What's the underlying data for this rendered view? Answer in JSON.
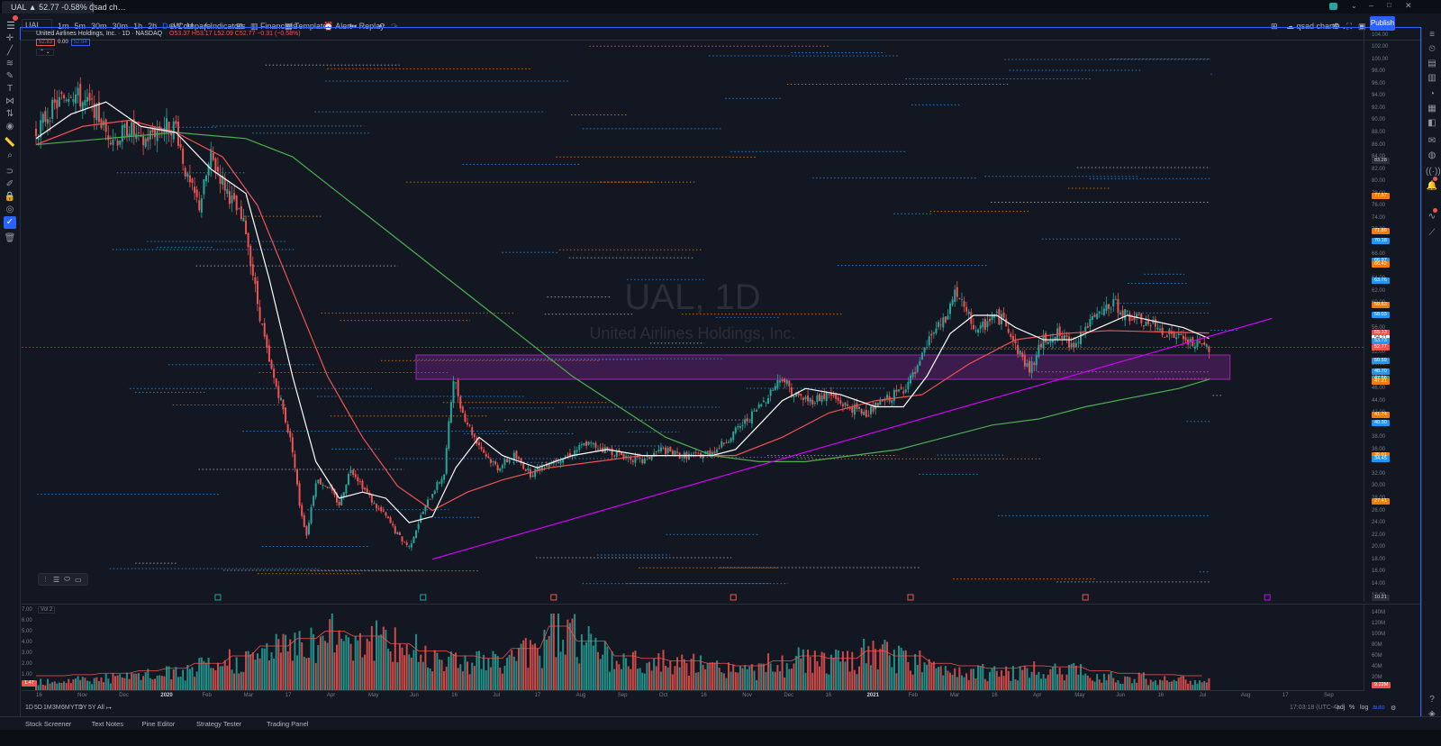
{
  "browser": {
    "tab_title": "UAL ▲ 52.77 -0.58% qsad ch…",
    "new_tab": "+"
  },
  "toolbar": {
    "symbol": "UAL",
    "intervals": [
      "1m",
      "5m",
      "30m",
      "30m",
      "1h",
      "2h",
      "D",
      "W",
      "M"
    ],
    "compare": "Compare",
    "indicators": "Indicators",
    "financials": "Financials",
    "templates": "Templates",
    "alert": "Alert",
    "replay": "Replay",
    "layout_name": "qsad charts",
    "publish": "Publish"
  },
  "legend": {
    "title": "United Airlines Holdings, Inc. · 1D · NASDAQ",
    "ohlc": "O53.37 H53.17 L52.09 C52.77 −0.31 (−0.58%)",
    "bid": "52.83",
    "spread": "0.00",
    "ask": "52.84",
    "volume_label": "Vol 2"
  },
  "watermark": {
    "symbol": "UAL, 1D",
    "name": "United Airlines Holdings, Inc."
  },
  "price_axis": {
    "ticks": [
      "104.00",
      "102.00",
      "100.00",
      "98.00",
      "96.00",
      "94.00",
      "92.00",
      "90.00",
      "88.00",
      "86.00",
      "84.00",
      "82.00",
      "80.00",
      "78.00",
      "76.00",
      "74.00",
      "72.00",
      "70.00",
      "68.00",
      "66.00",
      "64.00",
      "62.00",
      "60.00",
      "58.00",
      "56.00",
      "54.00",
      "52.00",
      "50.00",
      "48.00",
      "46.00",
      "44.00",
      "42.00",
      "40.00",
      "38.00",
      "36.00",
      "34.00",
      "32.00",
      "30.00",
      "28.00",
      "26.00",
      "24.00",
      "22.00",
      "20.00",
      "18.00",
      "16.00",
      "14.00",
      "12.00"
    ],
    "labels": [
      {
        "text": "83.28",
        "color": "#d1d4dc",
        "bg": "#2a2e39"
      },
      {
        "text": "77.57",
        "color": "#fff",
        "bg": "#f57c00"
      },
      {
        "text": "71.89",
        "color": "#fff",
        "bg": "#f57c00"
      },
      {
        "text": "70.18",
        "color": "#fff",
        "bg": "#2196f3"
      },
      {
        "text": "66.97",
        "color": "#fff",
        "bg": "#2196f3"
      },
      {
        "text": "66.42",
        "color": "#fff",
        "bg": "#f57c00"
      },
      {
        "text": "63.76",
        "color": "#fff",
        "bg": "#2196f3"
      },
      {
        "text": "59.63",
        "color": "#fff",
        "bg": "#f57c00"
      },
      {
        "text": "58.03",
        "color": "#fff",
        "bg": "#2196f3"
      },
      {
        "text": "55.13",
        "color": "#fff",
        "bg": "#ef5350"
      },
      {
        "text": "54.21",
        "color": "#131722",
        "bg": "#ffffff"
      },
      {
        "text": "53.73",
        "color": "#fff",
        "bg": "#2196f3"
      },
      {
        "text": "52.77",
        "color": "#fff",
        "bg": "#ef5350"
      },
      {
        "text": "50.59",
        "color": "#fff",
        "bg": "#2196f3"
      },
      {
        "text": "48.70",
        "color": "#fff",
        "bg": "#2196f3"
      },
      {
        "text": "47.56",
        "color": "#fff",
        "bg": "#26a69a"
      },
      {
        "text": "47.21",
        "color": "#fff",
        "bg": "#f57c00"
      },
      {
        "text": "41.74",
        "color": "#fff",
        "bg": "#f57c00"
      },
      {
        "text": "40.30",
        "color": "#fff",
        "bg": "#2196f3"
      },
      {
        "text": "35.01",
        "color": "#fff",
        "bg": "#f57c00"
      },
      {
        "text": "34.45",
        "color": "#fff",
        "bg": "#2196f3"
      },
      {
        "text": "27.41",
        "color": "#fff",
        "bg": "#f57c00"
      },
      {
        "text": "10.21",
        "color": "#d1d4dc",
        "bg": "#2a2e39"
      }
    ]
  },
  "volume_axis": {
    "ticks": [
      "140M",
      "120M",
      "100M",
      "80M",
      "60M",
      "40M",
      "20M"
    ],
    "last_volume": "9.22M",
    "left_ticks": [
      "7.00",
      "6.00",
      "5.00",
      "4.00",
      "3.00",
      "2.00",
      "1.00"
    ],
    "left_last": "1.47"
  },
  "time_axis": {
    "ticks": [
      "16",
      "Nov",
      "Dec",
      "2020",
      "Feb",
      "Mar",
      "17",
      "Apr",
      "May",
      "Jun",
      "16",
      "Jul",
      "17",
      "Aug",
      "Sep",
      "Oct",
      "16",
      "Nov",
      "Dec",
      "16",
      "2021",
      "Feb",
      "Mar",
      "16",
      "Apr",
      "May",
      "Jun",
      "16",
      "Jul",
      "Aug",
      "17",
      "Sep"
    ]
  },
  "range_bar": {
    "ranges": [
      "1D",
      "5D",
      "1M",
      "3M",
      "6M",
      "YTD",
      "1Y",
      "5Y",
      "All"
    ],
    "clock": "17:03:18 (UTC-4)",
    "adj": "adj",
    "pct": "%",
    "log": "log",
    "auto": "auto"
  },
  "bottom_tabs": [
    "Stock Screener",
    "Text Notes",
    "Pine Editor",
    "Strategy Tester",
    "Trading Panel"
  ],
  "chart_data": {
    "type": "candlestick",
    "symbol": "UAL",
    "interval": "1D",
    "ylim": [
      11,
      105
    ],
    "colors": {
      "up": "#26a69a",
      "down": "#ef5350",
      "ma_fast": "#ffffff",
      "ma_mid": "#ef5350",
      "ma_slow": "#4caf50",
      "trendline": "#d500f9",
      "zone": "#9c27b0"
    },
    "close_path": [
      {
        "d": 0,
        "c": 88
      },
      {
        "d": 5,
        "c": 91
      },
      {
        "d": 10,
        "c": 93
      },
      {
        "d": 15,
        "c": 95
      },
      {
        "d": 20,
        "c": 93
      },
      {
        "d": 25,
        "c": 92
      },
      {
        "d": 30,
        "c": 88
      },
      {
        "d": 35,
        "c": 87
      },
      {
        "d": 40,
        "c": 89
      },
      {
        "d": 45,
        "c": 86
      },
      {
        "d": 50,
        "c": 88
      },
      {
        "d": 55,
        "c": 89
      },
      {
        "d": 60,
        "c": 89
      },
      {
        "d": 65,
        "c": 80
      },
      {
        "d": 70,
        "c": 76
      },
      {
        "d": 75,
        "c": 84
      },
      {
        "d": 80,
        "c": 80
      },
      {
        "d": 85,
        "c": 76
      },
      {
        "d": 90,
        "c": 72
      },
      {
        "d": 95,
        "c": 60
      },
      {
        "d": 100,
        "c": 50
      },
      {
        "d": 105,
        "c": 44
      },
      {
        "d": 110,
        "c": 36
      },
      {
        "d": 113,
        "c": 27
      },
      {
        "d": 116,
        "c": 22
      },
      {
        "d": 120,
        "c": 31
      },
      {
        "d": 125,
        "c": 30
      },
      {
        "d": 130,
        "c": 27
      },
      {
        "d": 135,
        "c": 33
      },
      {
        "d": 140,
        "c": 30
      },
      {
        "d": 145,
        "c": 27
      },
      {
        "d": 150,
        "c": 25
      },
      {
        "d": 155,
        "c": 22
      },
      {
        "d": 160,
        "c": 20
      },
      {
        "d": 165,
        "c": 25
      },
      {
        "d": 170,
        "c": 29
      },
      {
        "d": 175,
        "c": 32
      },
      {
        "d": 179,
        "c": 48
      },
      {
        "d": 183,
        "c": 42
      },
      {
        "d": 188,
        "c": 38
      },
      {
        "d": 193,
        "c": 35
      },
      {
        "d": 198,
        "c": 33
      },
      {
        "d": 205,
        "c": 35
      },
      {
        "d": 212,
        "c": 32
      },
      {
        "d": 220,
        "c": 34
      },
      {
        "d": 228,
        "c": 35
      },
      {
        "d": 236,
        "c": 37
      },
      {
        "d": 244,
        "c": 36
      },
      {
        "d": 252,
        "c": 35
      },
      {
        "d": 260,
        "c": 34
      },
      {
        "d": 268,
        "c": 36
      },
      {
        "d": 276,
        "c": 35
      },
      {
        "d": 284,
        "c": 35
      },
      {
        "d": 292,
        "c": 36
      },
      {
        "d": 300,
        "c": 39
      },
      {
        "d": 308,
        "c": 42
      },
      {
        "d": 316,
        "c": 46
      },
      {
        "d": 320,
        "c": 48
      },
      {
        "d": 325,
        "c": 45
      },
      {
        "d": 332,
        "c": 44
      },
      {
        "d": 340,
        "c": 45
      },
      {
        "d": 348,
        "c": 43
      },
      {
        "d": 356,
        "c": 42
      },
      {
        "d": 364,
        "c": 44
      },
      {
        "d": 372,
        "c": 46
      },
      {
        "d": 378,
        "c": 49
      },
      {
        "d": 384,
        "c": 55
      },
      {
        "d": 390,
        "c": 57
      },
      {
        "d": 394,
        "c": 62
      },
      {
        "d": 398,
        "c": 59
      },
      {
        "d": 404,
        "c": 55
      },
      {
        "d": 410,
        "c": 58
      },
      {
        "d": 416,
        "c": 57
      },
      {
        "d": 420,
        "c": 53
      },
      {
        "d": 426,
        "c": 49
      },
      {
        "d": 432,
        "c": 54
      },
      {
        "d": 438,
        "c": 55
      },
      {
        "d": 444,
        "c": 53
      },
      {
        "d": 450,
        "c": 56
      },
      {
        "d": 456,
        "c": 58
      },
      {
        "d": 462,
        "c": 60
      },
      {
        "d": 468,
        "c": 58
      },
      {
        "d": 474,
        "c": 57
      },
      {
        "d": 480,
        "c": 56
      },
      {
        "d": 486,
        "c": 55
      },
      {
        "d": 492,
        "c": 54
      },
      {
        "d": 498,
        "c": 53
      },
      {
        "d": 503,
        "c": 52.77
      }
    ],
    "ma_fast": [
      {
        "d": 0,
        "c": 87
      },
      {
        "d": 15,
        "c": 91
      },
      {
        "d": 30,
        "c": 93
      },
      {
        "d": 45,
        "c": 89
      },
      {
        "d": 60,
        "c": 88
      },
      {
        "d": 75,
        "c": 82
      },
      {
        "d": 90,
        "c": 78
      },
      {
        "d": 100,
        "c": 64
      },
      {
        "d": 110,
        "c": 48
      },
      {
        "d": 120,
        "c": 34
      },
      {
        "d": 130,
        "c": 28
      },
      {
        "d": 140,
        "c": 29
      },
      {
        "d": 150,
        "c": 28
      },
      {
        "d": 160,
        "c": 24
      },
      {
        "d": 170,
        "c": 25
      },
      {
        "d": 180,
        "c": 33
      },
      {
        "d": 190,
        "c": 38
      },
      {
        "d": 200,
        "c": 35
      },
      {
        "d": 215,
        "c": 33
      },
      {
        "d": 230,
        "c": 35
      },
      {
        "d": 245,
        "c": 36
      },
      {
        "d": 260,
        "c": 35
      },
      {
        "d": 275,
        "c": 35
      },
      {
        "d": 290,
        "c": 35
      },
      {
        "d": 300,
        "c": 36
      },
      {
        "d": 310,
        "c": 40
      },
      {
        "d": 320,
        "c": 44
      },
      {
        "d": 330,
        "c": 46
      },
      {
        "d": 345,
        "c": 45
      },
      {
        "d": 360,
        "c": 43
      },
      {
        "d": 372,
        "c": 43
      },
      {
        "d": 382,
        "c": 48
      },
      {
        "d": 392,
        "c": 55
      },
      {
        "d": 402,
        "c": 58
      },
      {
        "d": 412,
        "c": 58
      },
      {
        "d": 420,
        "c": 56
      },
      {
        "d": 432,
        "c": 54
      },
      {
        "d": 444,
        "c": 54
      },
      {
        "d": 456,
        "c": 56
      },
      {
        "d": 468,
        "c": 58
      },
      {
        "d": 480,
        "c": 57
      },
      {
        "d": 492,
        "c": 56
      },
      {
        "d": 503,
        "c": 54.2
      }
    ],
    "ma_mid": [
      {
        "d": 0,
        "c": 86
      },
      {
        "d": 20,
        "c": 89
      },
      {
        "d": 40,
        "c": 90
      },
      {
        "d": 60,
        "c": 88
      },
      {
        "d": 80,
        "c": 84
      },
      {
        "d": 95,
        "c": 76
      },
      {
        "d": 110,
        "c": 62
      },
      {
        "d": 125,
        "c": 48
      },
      {
        "d": 140,
        "c": 38
      },
      {
        "d": 155,
        "c": 30
      },
      {
        "d": 170,
        "c": 26
      },
      {
        "d": 185,
        "c": 29
      },
      {
        "d": 200,
        "c": 31
      },
      {
        "d": 220,
        "c": 33
      },
      {
        "d": 240,
        "c": 34
      },
      {
        "d": 260,
        "c": 35
      },
      {
        "d": 280,
        "c": 35
      },
      {
        "d": 300,
        "c": 35
      },
      {
        "d": 320,
        "c": 38
      },
      {
        "d": 340,
        "c": 42
      },
      {
        "d": 360,
        "c": 44
      },
      {
        "d": 380,
        "c": 45
      },
      {
        "d": 400,
        "c": 50
      },
      {
        "d": 420,
        "c": 54
      },
      {
        "d": 440,
        "c": 55
      },
      {
        "d": 460,
        "c": 55.5
      },
      {
        "d": 480,
        "c": 55.3
      },
      {
        "d": 503,
        "c": 55.1
      }
    ],
    "ma_slow": [
      {
        "d": 0,
        "c": 86
      },
      {
        "d": 30,
        "c": 87
      },
      {
        "d": 60,
        "c": 88
      },
      {
        "d": 90,
        "c": 87
      },
      {
        "d": 110,
        "c": 84
      },
      {
        "d": 130,
        "c": 78
      },
      {
        "d": 150,
        "c": 72
      },
      {
        "d": 170,
        "c": 66
      },
      {
        "d": 190,
        "c": 60
      },
      {
        "d": 210,
        "c": 54
      },
      {
        "d": 230,
        "c": 48
      },
      {
        "d": 250,
        "c": 43
      },
      {
        "d": 270,
        "c": 38
      },
      {
        "d": 290,
        "c": 35
      },
      {
        "d": 310,
        "c": 34
      },
      {
        "d": 330,
        "c": 34
      },
      {
        "d": 350,
        "c": 35
      },
      {
        "d": 370,
        "c": 36
      },
      {
        "d": 390,
        "c": 38
      },
      {
        "d": 410,
        "c": 40
      },
      {
        "d": 430,
        "c": 41
      },
      {
        "d": 450,
        "c": 43
      },
      {
        "d": 470,
        "c": 44.5
      },
      {
        "d": 490,
        "c": 46
      },
      {
        "d": 503,
        "c": 47.5
      }
    ],
    "volume_profile_hint": [
      20,
      22,
      25,
      30,
      35,
      45,
      60,
      80,
      95,
      110,
      100,
      85,
      70,
      60,
      55,
      75,
      120,
      90,
      60,
      55,
      50,
      45,
      40,
      50,
      60,
      55,
      70,
      60,
      45,
      40,
      35,
      40,
      38,
      30,
      25,
      22,
      20,
      18
    ],
    "trendline": {
      "from": {
        "d": 170,
        "c": 18
      },
      "to": {
        "d": 530,
        "c": 57.5
      }
    },
    "zone": {
      "from_d": 163,
      "to_d": 512,
      "top": 51.5,
      "bottom": 47.5
    }
  }
}
